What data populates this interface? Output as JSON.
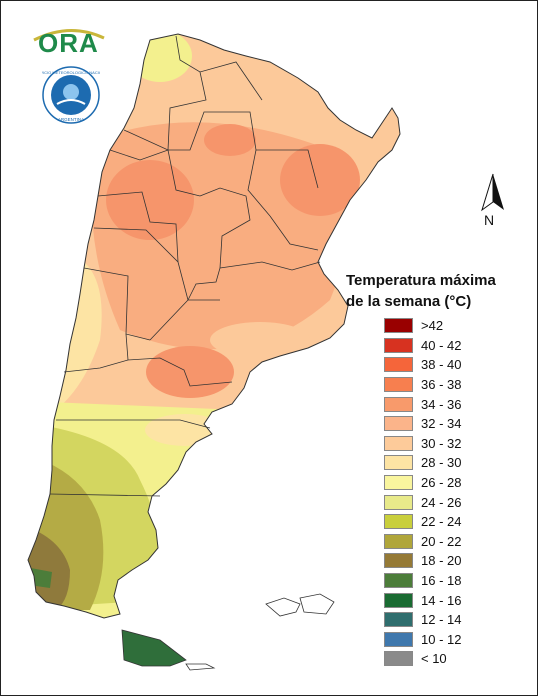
{
  "logo": {
    "text": "ORA"
  },
  "seal": {
    "text": "SERVICIO METEOROLOGICO NACIONAL · ARGENTINA",
    "icon": "smn-seal-icon"
  },
  "compass": {
    "label": "N",
    "icon": "north-arrow-icon"
  },
  "legend": {
    "title_line1": "Temperatura máxima",
    "title_line2": "de la semana (°C)",
    "items": [
      {
        "label": ">42",
        "color": "#990000"
      },
      {
        "label": "40 - 42",
        "color": "#d73220"
      },
      {
        "label": "38 - 40",
        "color": "#f5653a"
      },
      {
        "label": "36 - 38",
        "color": "#f77f4f"
      },
      {
        "label": "34 - 36",
        "color": "#f89a6b"
      },
      {
        "label": "32 - 34",
        "color": "#fbb48a"
      },
      {
        "label": "30 - 32",
        "color": "#fdcb9a"
      },
      {
        "label": "28 - 30",
        "color": "#fde4a4"
      },
      {
        "label": "26 - 28",
        "color": "#f9f59e"
      },
      {
        "label": "24 - 26",
        "color": "#e8ea8a"
      },
      {
        "label": "22 - 24",
        "color": "#c9cf3c"
      },
      {
        "label": "20 - 22",
        "color": "#b0a63a"
      },
      {
        "label": "18 - 20",
        "color": "#957a36"
      },
      {
        "label": "16 - 18",
        "color": "#4c7d3a"
      },
      {
        "label": "14 - 16",
        "color": "#1a6b32"
      },
      {
        "label": "12 - 14",
        "color": "#2f6e6e"
      },
      {
        "label": "10 - 12",
        "color": "#3f78ad"
      },
      {
        "label": "< 10",
        "color": "#8a8a8a"
      }
    ]
  },
  "map_colors": {
    "warm": "#f9ad80",
    "warmer": "#f6956b",
    "mild": "#fcc99a",
    "cream": "#fde4a4",
    "yellow": "#f3f08e",
    "olive": "#d3d660",
    "olive_dark": "#b4ab45",
    "brown": "#8f7a3c",
    "green": "#4c7d3a",
    "tierra": "#2f6e3a"
  }
}
